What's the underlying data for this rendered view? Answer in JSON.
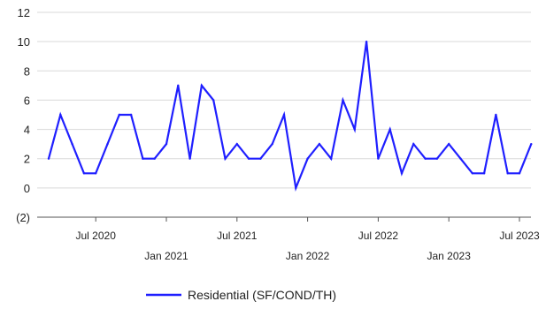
{
  "chart_data": {
    "type": "line",
    "title": "",
    "xlabel": "",
    "ylabel": "",
    "ylim": [
      -2,
      12
    ],
    "yticks": [
      -2,
      0,
      2,
      4,
      6,
      8,
      10,
      12
    ],
    "ytick_labels": [
      "(2)",
      "0",
      "2",
      "4",
      "6",
      "8",
      "10",
      "12"
    ],
    "grid": "horizontal",
    "legend_position": "bottom",
    "line_color": "#1f1fff",
    "x_start": "2020-03",
    "xticks": [
      {
        "index": 4,
        "label": "Jul 2020",
        "row": 0
      },
      {
        "index": 10,
        "label": "Jan 2021",
        "row": 1
      },
      {
        "index": 16,
        "label": "Jul 2021",
        "row": 0
      },
      {
        "index": 22,
        "label": "Jan 2022",
        "row": 1
      },
      {
        "index": 28,
        "label": "Jul 2022",
        "row": 0
      },
      {
        "index": 34,
        "label": "Jan 2023",
        "row": 1
      },
      {
        "index": 40,
        "label": "Jul 2023",
        "row": 0
      }
    ],
    "series": [
      {
        "name": "Residential (SF/COND/TH)",
        "values": [
          2,
          5,
          3,
          1,
          1,
          3,
          5,
          5,
          2,
          2,
          3,
          7,
          2,
          7,
          6,
          2,
          3,
          2,
          2,
          3,
          5,
          0,
          2,
          3,
          2,
          6,
          4,
          10,
          2,
          4,
          1,
          3,
          2,
          2,
          3,
          2,
          1,
          1,
          5,
          1,
          1,
          3
        ]
      }
    ]
  }
}
